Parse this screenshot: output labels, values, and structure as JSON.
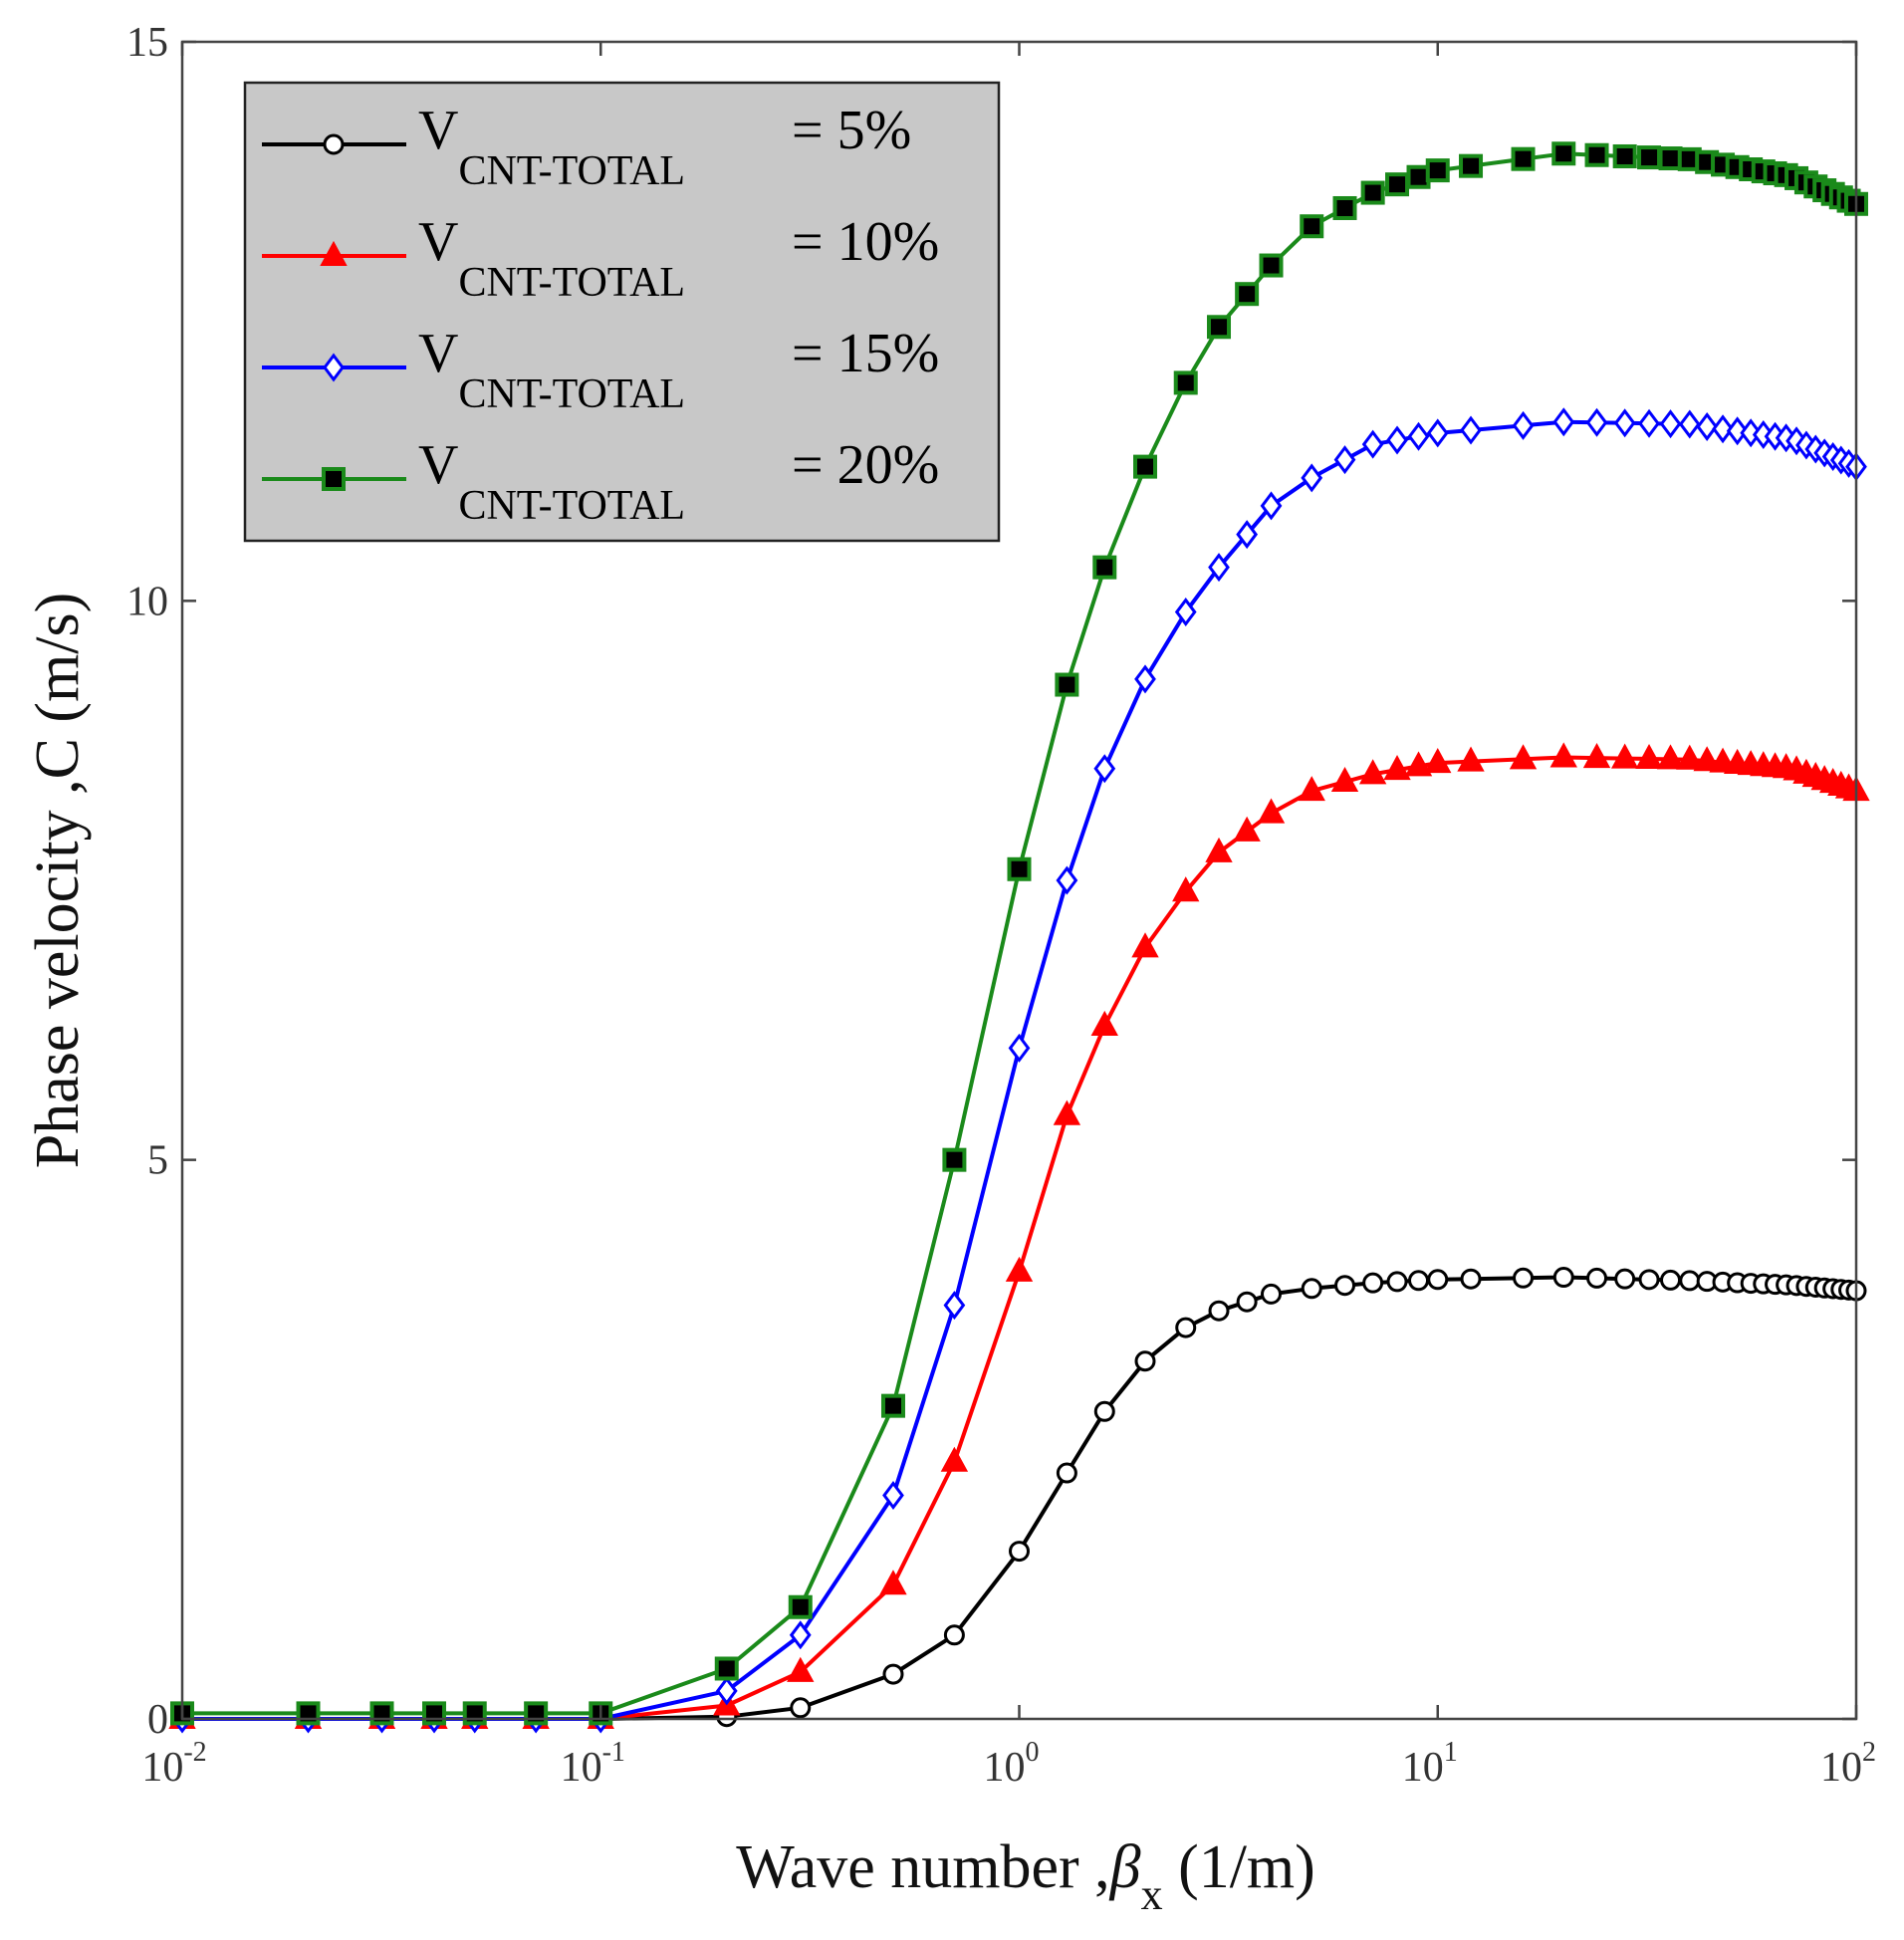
{
  "chart_data": {
    "type": "line",
    "title": "",
    "xscale": "log",
    "xlim": [
      0.01,
      100
    ],
    "ylim": [
      0,
      15
    ],
    "xlabel": {
      "prefix": "Wave number ,",
      "symbol": "β",
      "sub": "x",
      "unit": " (1/m)"
    },
    "ylabel": "Phase velocity ,C (m/s)",
    "xticks": [
      {
        "base": "10",
        "exp": "-2",
        "value": 0.01
      },
      {
        "base": "10",
        "exp": "-1",
        "value": 0.1
      },
      {
        "base": "10",
        "exp": "0",
        "value": 1
      },
      {
        "base": "10",
        "exp": "1",
        "value": 10
      },
      {
        "base": "10",
        "exp": "2",
        "value": 100
      }
    ],
    "yticks": [
      {
        "label": "0",
        "value": 0
      },
      {
        "label": "5",
        "value": 5
      },
      {
        "label": "10",
        "value": 10
      },
      {
        "label": "15",
        "value": 15
      }
    ],
    "grid": false,
    "legend_position": "top-left",
    "legend_main": "V",
    "legend_sub": "CNT-TOTAL",
    "series": [
      {
        "name": "5%",
        "legend_suffix": "= 5%",
        "color": "#000000",
        "marker": "circle",
        "marker_fill": "#ffffff",
        "control_points": [
          [
            0.01,
            0
          ],
          [
            0.1,
            0
          ],
          [
            0.2,
            0.02
          ],
          [
            0.3,
            0.1
          ],
          [
            0.5,
            0.4
          ],
          [
            0.7,
            0.75
          ],
          [
            1.0,
            1.5
          ],
          [
            1.3,
            2.2
          ],
          [
            1.6,
            2.75
          ],
          [
            2.0,
            3.2
          ],
          [
            2.5,
            3.5
          ],
          [
            3.0,
            3.65
          ],
          [
            4.0,
            3.8
          ],
          [
            5.0,
            3.85
          ],
          [
            7.0,
            3.9
          ],
          [
            10.0,
            3.93
          ],
          [
            20.0,
            3.95
          ],
          [
            40.0,
            3.92
          ],
          [
            70.0,
            3.88
          ],
          [
            100.0,
            3.83
          ]
        ]
      },
      {
        "name": "10%",
        "legend_suffix": "= 10%",
        "color": "#ff0000",
        "marker": "triangle",
        "marker_fill": "#ff0000",
        "control_points": [
          [
            0.01,
            0
          ],
          [
            0.1,
            0
          ],
          [
            0.2,
            0.12
          ],
          [
            0.3,
            0.42
          ],
          [
            0.5,
            1.2
          ],
          [
            0.7,
            2.3
          ],
          [
            1.0,
            4.0
          ],
          [
            1.3,
            5.4
          ],
          [
            1.6,
            6.2
          ],
          [
            2.0,
            6.9
          ],
          [
            2.5,
            7.4
          ],
          [
            3.0,
            7.75
          ],
          [
            4.0,
            8.1
          ],
          [
            5.0,
            8.3
          ],
          [
            7.0,
            8.45
          ],
          [
            10.0,
            8.55
          ],
          [
            20.0,
            8.6
          ],
          [
            40.0,
            8.58
          ],
          [
            70.0,
            8.5
          ],
          [
            100.0,
            8.3
          ]
        ]
      },
      {
        "name": "15%",
        "legend_suffix": "= 15%",
        "color": "#0000ff",
        "marker": "diamond",
        "marker_fill": "#ffffff",
        "control_points": [
          [
            0.01,
            0
          ],
          [
            0.1,
            0
          ],
          [
            0.2,
            0.25
          ],
          [
            0.3,
            0.75
          ],
          [
            0.5,
            2.0
          ],
          [
            0.7,
            3.7
          ],
          [
            1.0,
            6.0
          ],
          [
            1.3,
            7.5
          ],
          [
            1.6,
            8.5
          ],
          [
            2.0,
            9.3
          ],
          [
            2.5,
            9.9
          ],
          [
            3.0,
            10.3
          ],
          [
            4.0,
            10.85
          ],
          [
            5.0,
            11.1
          ],
          [
            7.0,
            11.4
          ],
          [
            10.0,
            11.5
          ],
          [
            20.0,
            11.6
          ],
          [
            40.0,
            11.58
          ],
          [
            70.0,
            11.45
          ],
          [
            100.0,
            11.2
          ]
        ]
      },
      {
        "name": "20%",
        "legend_suffix": "= 20%",
        "color": "#1a8a1a",
        "marker": "square",
        "marker_fill": "#000000",
        "control_points": [
          [
            0.01,
            0.05
          ],
          [
            0.1,
            0.05
          ],
          [
            0.2,
            0.45
          ],
          [
            0.3,
            1.0
          ],
          [
            0.5,
            2.8
          ],
          [
            0.7,
            5.0
          ],
          [
            1.0,
            7.6
          ],
          [
            1.3,
            9.25
          ],
          [
            1.6,
            10.3
          ],
          [
            2.0,
            11.2
          ],
          [
            2.5,
            11.95
          ],
          [
            3.0,
            12.45
          ],
          [
            4.0,
            13.0
          ],
          [
            5.0,
            13.35
          ],
          [
            7.0,
            13.65
          ],
          [
            10.0,
            13.85
          ],
          [
            20.0,
            14.0
          ],
          [
            40.0,
            13.95
          ],
          [
            70.0,
            13.8
          ],
          [
            100.0,
            13.55
          ]
        ]
      }
    ]
  }
}
